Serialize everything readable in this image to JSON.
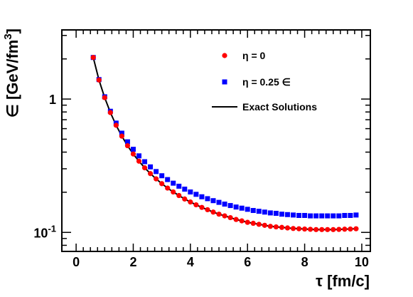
{
  "chart_data": {
    "type": "scatter",
    "title": "",
    "xlabel": "τ [fm/c]",
    "ylabel": "∈ [GeV/fm³]",
    "xlim": [
      -0.5,
      10.3
    ],
    "ylim": [
      0.072,
      3.3
    ],
    "yscale": "log",
    "grid": false,
    "legend_position": "top-right",
    "x_ticks": [
      "0",
      "2",
      "4",
      "6",
      "8",
      "10"
    ],
    "y_ticks": [
      {
        "value": 1,
        "base": "1",
        "exp": ""
      },
      {
        "value": 0.1,
        "base": "10",
        "exp": "-1"
      }
    ],
    "series": [
      {
        "name": "η = 0",
        "marker": "circle",
        "color": "#ff0000",
        "x": [
          0.6,
          0.8,
          1.0,
          1.2,
          1.4,
          1.6,
          1.8,
          2.0,
          2.2,
          2.4,
          2.6,
          2.8,
          3.0,
          3.2,
          3.4,
          3.6,
          3.8,
          4.0,
          4.2,
          4.4,
          4.6,
          4.8,
          5.0,
          5.2,
          5.4,
          5.6,
          5.8,
          6.0,
          6.2,
          6.4,
          6.6,
          6.8,
          7.0,
          7.2,
          7.4,
          7.6,
          7.8,
          8.0,
          8.2,
          8.4,
          8.6,
          8.8,
          9.0,
          9.2,
          9.4,
          9.6,
          9.8
        ],
        "y": [
          2.05,
          1.39,
          1.025,
          0.792,
          0.636,
          0.527,
          0.447,
          0.387,
          0.342,
          0.305,
          0.276,
          0.252,
          0.232,
          0.215,
          0.201,
          0.189,
          0.178,
          0.169,
          0.161,
          0.154,
          0.148,
          0.142,
          0.137,
          0.133,
          0.129,
          0.125,
          0.122,
          0.119,
          0.117,
          0.115,
          0.113,
          0.111,
          0.11,
          0.109,
          0.108,
          0.107,
          0.1065,
          0.106,
          0.1055,
          0.105,
          0.105,
          0.105,
          0.105,
          0.1053,
          0.1057,
          0.106,
          0.1065
        ]
      },
      {
        "name": "η = 0.25 ∈",
        "marker": "square",
        "color": "#0000ff",
        "x": [
          0.6,
          0.8,
          1.0,
          1.2,
          1.4,
          1.6,
          1.8,
          2.0,
          2.2,
          2.4,
          2.6,
          2.8,
          3.0,
          3.2,
          3.4,
          3.6,
          3.8,
          4.0,
          4.2,
          4.4,
          4.6,
          4.8,
          5.0,
          5.2,
          5.4,
          5.6,
          5.8,
          6.0,
          6.2,
          6.4,
          6.6,
          6.8,
          7.0,
          7.2,
          7.4,
          7.6,
          7.8,
          8.0,
          8.2,
          8.4,
          8.6,
          8.8,
          9.0,
          9.2,
          9.4,
          9.6,
          9.8
        ],
        "y": [
          2.05,
          1.4,
          1.04,
          0.81,
          0.66,
          0.555,
          0.478,
          0.42,
          0.375,
          0.339,
          0.31,
          0.286,
          0.266,
          0.249,
          0.234,
          0.222,
          0.211,
          0.201,
          0.193,
          0.185,
          0.179,
          0.173,
          0.168,
          0.163,
          0.159,
          0.155,
          0.152,
          0.149,
          0.146,
          0.144,
          0.142,
          0.14,
          0.139,
          0.137,
          0.136,
          0.135,
          0.134,
          0.134,
          0.133,
          0.133,
          0.133,
          0.133,
          0.133,
          0.133,
          0.134,
          0.134,
          0.135
        ]
      },
      {
        "name": "Exact Solutions",
        "marker": "line",
        "color": "#000000",
        "x": [
          0.6,
          0.8,
          1.0,
          1.2,
          1.4,
          1.6,
          1.8,
          2.0,
          2.2,
          2.4,
          2.6,
          2.8,
          3.0,
          3.2,
          3.4,
          3.6,
          3.8,
          4.0,
          4.2,
          4.4,
          4.6,
          4.8,
          5.0,
          5.2,
          5.4,
          5.6,
          5.8,
          6.0,
          6.2,
          6.4,
          6.6,
          6.8,
          7.0,
          7.2,
          7.4,
          7.6,
          7.8,
          8.0,
          8.2,
          8.4,
          8.6,
          8.8,
          9.0,
          9.2,
          9.4,
          9.6,
          9.8
        ],
        "y": [
          2.05,
          1.39,
          1.025,
          0.792,
          0.636,
          0.527,
          0.447,
          0.387,
          0.342,
          0.305,
          0.276,
          0.252,
          0.232,
          0.215,
          0.201,
          0.189,
          0.178,
          0.169,
          0.161,
          0.154,
          0.148,
          0.142,
          0.137,
          0.133,
          0.129,
          0.125,
          0.122,
          0.119,
          0.117,
          0.115,
          0.113,
          0.111,
          0.11,
          0.109,
          0.108,
          0.107,
          0.1065,
          0.106,
          0.1055,
          0.105,
          0.105,
          0.105,
          0.105,
          0.1053,
          0.1057,
          0.106,
          0.1065
        ]
      }
    ]
  }
}
